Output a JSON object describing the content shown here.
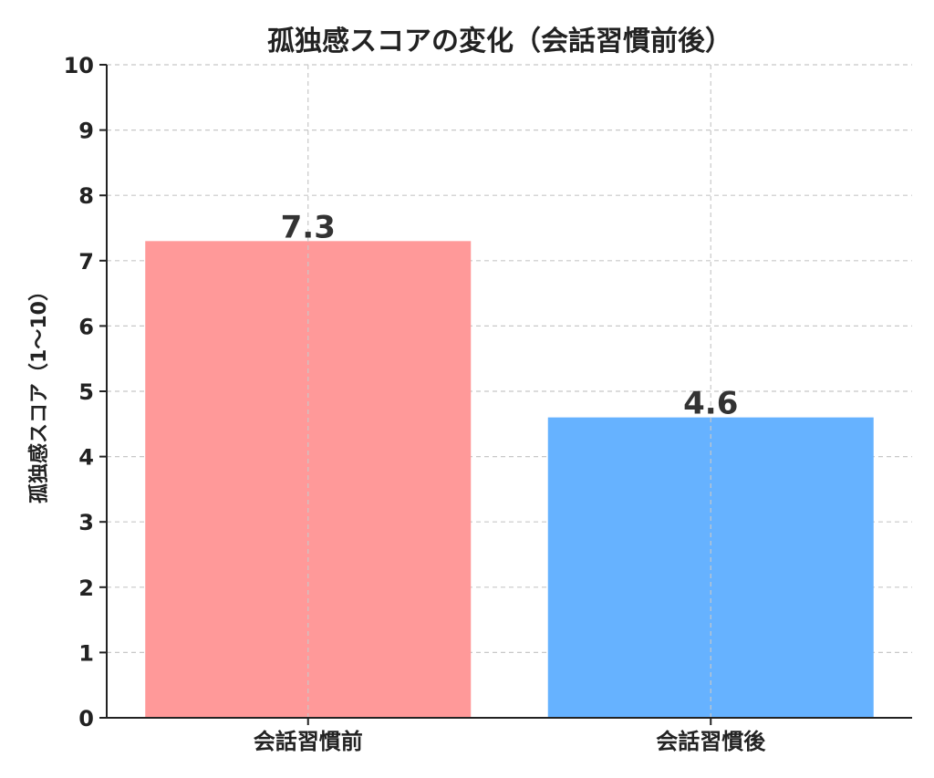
{
  "chart_data": {
    "type": "bar",
    "title": "孤独感スコアの変化（会話習慣前後）",
    "xlabel": "",
    "ylabel": "孤独感スコア（1〜10）",
    "categories": [
      "会話習慣前",
      "会話習慣後"
    ],
    "values": [
      7.3,
      4.6
    ],
    "value_labels": [
      "7.3",
      "4.6"
    ],
    "colors": [
      "#ff9999",
      "#66b2ff"
    ],
    "ylim": [
      0,
      10
    ],
    "yticks": [
      "0",
      "1",
      "2",
      "3",
      "4",
      "5",
      "6",
      "7",
      "8",
      "9",
      "10"
    ],
    "grid": true,
    "legend": "none"
  }
}
